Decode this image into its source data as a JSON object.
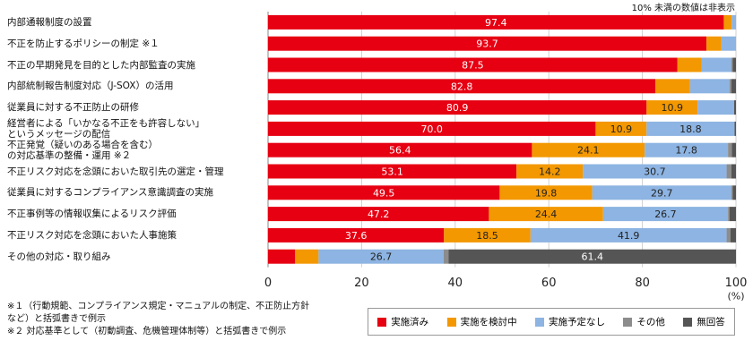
{
  "chart_data": {
    "type": "stacked-bar-horizontal",
    "note": "10% 未満の数値は非表示",
    "categories": [
      "内部通報制度の設置",
      "不正を防止するポリシーの制定 ※１",
      "不正の早期発見を目的とした内部監査の実施",
      "内部統制報告制度対応（J-SOX）の活用",
      "従業員に対する不正防止の研修",
      "経営者による「いかなる不正をも許容しない」\nというメッセージの配信",
      "不正発覚（疑いのある場合を含む）\nの対応基準の整備・運用 ※２",
      "不正リスク対応を念頭においた取引先の選定・管理",
      "従業員に対するコンプライアンス意識調査の実施",
      "不正事例等の情報収集によるリスク評価",
      "不正リスク対応を念頭においた人事施策",
      "その他の対応・取り組み"
    ],
    "series": [
      {
        "name": "実施済み",
        "color": "#e60012",
        "values": [
          97.4,
          93.7,
          87.5,
          82.8,
          80.9,
          70.0,
          56.4,
          53.1,
          49.5,
          47.2,
          37.6,
          5.8
        ],
        "value_labels": [
          "97.4",
          "93.7",
          "87.5",
          "82.8",
          "80.9",
          "70.0",
          "56.4",
          "53.1",
          "49.5",
          "47.2",
          "37.6",
          null
        ]
      },
      {
        "name": "実施を検討中",
        "color": "#f39800",
        "values": [
          1.7,
          3.2,
          5.2,
          7.4,
          10.9,
          10.9,
          24.1,
          14.2,
          19.8,
          24.4,
          18.5,
          5.0
        ],
        "value_labels": [
          null,
          null,
          null,
          null,
          "10.9",
          "10.9",
          "24.1",
          "14.2",
          "19.8",
          "24.4",
          "18.5",
          null
        ]
      },
      {
        "name": "実施予定なし",
        "color": "#8db4e2",
        "values": [
          0.9,
          3.1,
          6.3,
          8.4,
          7.8,
          18.8,
          17.8,
          30.7,
          29.7,
          26.7,
          41.9,
          26.7
        ],
        "value_labels": [
          null,
          null,
          null,
          null,
          null,
          "18.8",
          "17.8",
          "30.7",
          "29.7",
          "26.7",
          "41.9",
          "26.7"
        ]
      },
      {
        "name": "その他",
        "color": "#8c8c8c",
        "values": [
          0,
          0,
          0.3,
          0.4,
          0,
          0,
          0.8,
          1.0,
          0.3,
          0.3,
          0.8,
          1.1
        ],
        "value_labels": [
          null,
          null,
          null,
          null,
          null,
          null,
          null,
          null,
          null,
          null,
          null,
          null
        ]
      },
      {
        "name": "無回答",
        "color": "#555555",
        "values": [
          0,
          0,
          0.7,
          1.0,
          0.4,
          0.3,
          0.9,
          1.0,
          0.7,
          1.4,
          1.2,
          61.4
        ],
        "value_labels": [
          null,
          null,
          null,
          null,
          null,
          null,
          null,
          null,
          null,
          null,
          null,
          "61.4"
        ]
      }
    ],
    "xlim": [
      0,
      100
    ],
    "xticks": [
      0,
      20,
      40,
      60,
      80,
      100
    ],
    "xlabel": "(%)",
    "grid": true,
    "footnotes": [
      "※１（行動規範、コンプライアンス規定・マニュアルの制定、不正防止方針\nなど）と括弧書きで例示",
      "※２ 対応基準として（初動調査、危機管理体制等）と括弧書きで例示"
    ]
  }
}
